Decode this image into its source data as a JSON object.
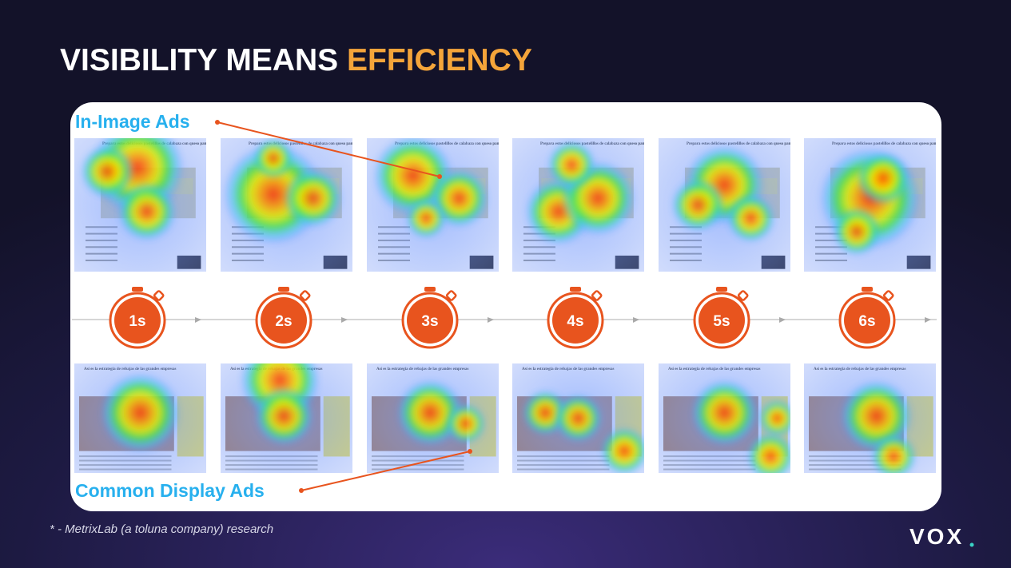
{
  "title": {
    "part1": "VISIBILITY MEANS ",
    "part2": "EFFICIENCY"
  },
  "labels": {
    "top": "In-Image Ads",
    "bottom": "Common Display Ads"
  },
  "thumb_headlines": {
    "top": "Prepara estos deliciosos pastelillos de calabaza con queso panbro",
    "bottom": "Así es la estrategia de rebajas de las grandes empresas"
  },
  "timers": [
    "1s",
    "2s",
    "3s",
    "4s",
    "5s",
    "6s"
  ],
  "footnote": "* - MetrixLab (a toluna company) research",
  "logo": "VOX"
}
